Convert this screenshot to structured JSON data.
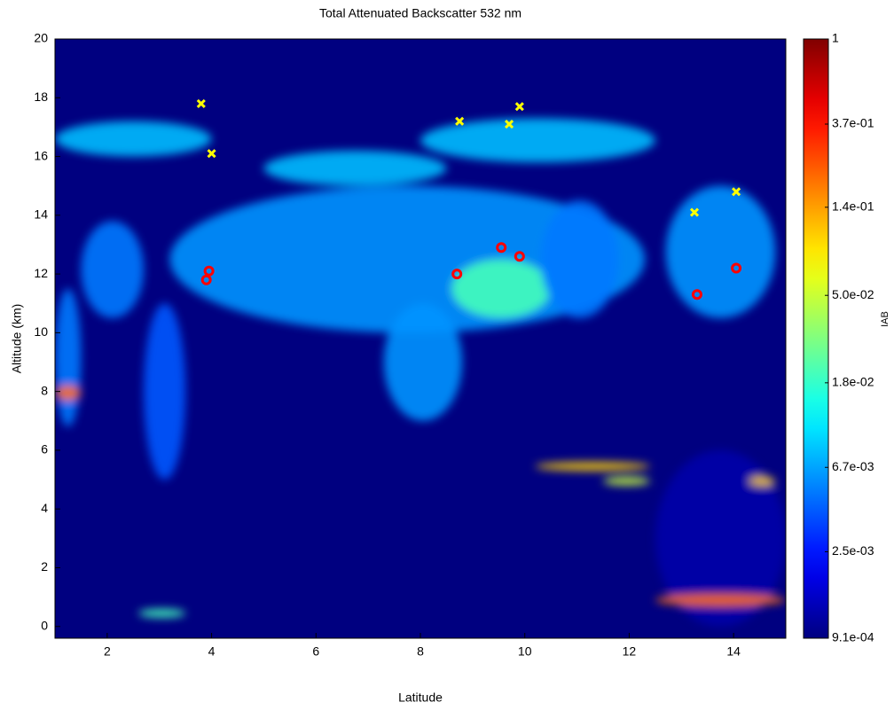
{
  "chart_data": {
    "type": "curtain",
    "title": "Total Attenuated Backscatter 532 nm",
    "x_label": "Latitude",
    "y_label": "Altitude (km)",
    "colorbar_label": "IAB",
    "xlim": [
      1,
      15
    ],
    "ylim": [
      -0.4,
      20
    ],
    "xticks": [
      2,
      4,
      6,
      8,
      10,
      12,
      14
    ],
    "yticks": [
      0,
      2,
      4,
      6,
      8,
      10,
      12,
      14,
      16,
      18,
      20
    ],
    "clim": [
      0.00091,
      1
    ],
    "log_color_scale": true,
    "colormap": "jet",
    "cticks": [
      {
        "value": 1,
        "label": "1"
      },
      {
        "value": 0.37,
        "label": "3.7e-01"
      },
      {
        "value": 0.14,
        "label": "1.4e-01"
      },
      {
        "value": 0.05,
        "label": "5.0e-02"
      },
      {
        "value": 0.018,
        "label": "1.8e-02"
      },
      {
        "value": 0.0067,
        "label": "6.7e-03"
      },
      {
        "value": 0.0025,
        "label": "2.5e-03"
      },
      {
        "value": 0.00091,
        "label": "9.1e-04"
      }
    ],
    "regions": [
      {
        "lat": [
          12.5,
          15
        ],
        "alt": [
          0,
          6
        ],
        "value": 0.0012
      },
      {
        "lat": [
          1.0,
          4.0
        ],
        "alt": [
          16,
          17.2
        ],
        "value": 0.008
      },
      {
        "lat": [
          8.0,
          12.5
        ],
        "alt": [
          15.8,
          17.3
        ],
        "value": 0.008
      },
      {
        "lat": [
          5.0,
          8.5
        ],
        "alt": [
          15,
          16.2
        ],
        "value": 0.008
      },
      {
        "lat": [
          3.2,
          12.3
        ],
        "alt": [
          10,
          15
        ],
        "value": 0.006
      },
      {
        "lat": [
          1.5,
          2.7
        ],
        "alt": [
          10.5,
          13.8
        ],
        "value": 0.005
      },
      {
        "lat": [
          2.7,
          3.5
        ],
        "alt": [
          5,
          11
        ],
        "value": 0.004
      },
      {
        "lat": [
          7.3,
          8.8
        ],
        "alt": [
          7,
          11
        ],
        "value": 0.006
      },
      {
        "lat": [
          8.6,
          10.5
        ],
        "alt": [
          10.5,
          12.5
        ],
        "value": 0.02
      },
      {
        "lat": [
          10.3,
          11.8
        ],
        "alt": [
          10.5,
          14.5
        ],
        "value": 0.005
      },
      {
        "lat": [
          12.7,
          14.8
        ],
        "alt": [
          10.5,
          15
        ],
        "value": 0.006
      },
      {
        "lat": [
          1.0,
          1.5
        ],
        "alt": [
          6.8,
          11.5
        ],
        "value": 0.005
      },
      {
        "lat": [
          1.0,
          1.5
        ],
        "alt": [
          7.7,
          8.2
        ],
        "value": 0.2
      },
      {
        "lat": [
          10.2,
          12.4
        ],
        "alt": [
          5.3,
          5.6
        ],
        "value": 0.1
      },
      {
        "lat": [
          11.5,
          12.4
        ],
        "alt": [
          4.8,
          5.1
        ],
        "value": 0.05
      },
      {
        "lat": [
          14.3,
          14.8
        ],
        "alt": [
          4.8,
          5.1
        ],
        "value": 0.1
      },
      {
        "lat": [
          12.5,
          15
        ],
        "alt": [
          0.7,
          1.1
        ],
        "value": 0.2
      },
      {
        "lat": [
          2.6,
          3.5
        ],
        "alt": [
          0.3,
          0.6
        ],
        "value": 0.02
      }
    ],
    "series": [
      {
        "marker": "x",
        "color": "#ffff00",
        "x": [
          3.8,
          4.0,
          8.75,
          9.7,
          9.9,
          13.25,
          14.05
        ],
        "values": [
          17.8,
          16.1,
          17.2,
          17.1,
          17.7,
          14.1,
          14.8
        ]
      },
      {
        "marker": "o",
        "color": "#ff0000",
        "x": [
          3.95,
          3.9,
          8.7,
          9.55,
          9.9,
          13.3,
          14.05
        ],
        "values": [
          12.1,
          11.8,
          12.0,
          12.9,
          12.6,
          11.3,
          12.2
        ]
      }
    ]
  }
}
